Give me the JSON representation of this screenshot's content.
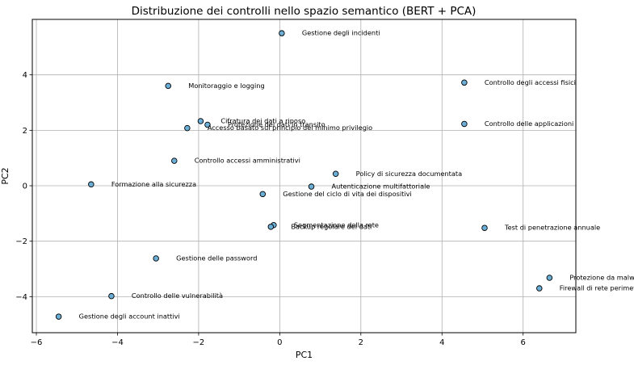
{
  "chart_data": {
    "type": "scatter",
    "title": "Distribuzione dei controlli nello spazio semantico (BERT + PCA)",
    "xlabel": "PC1",
    "ylabel": "PC2",
    "xlim": [
      -6.1,
      7.3
    ],
    "ylim": [
      -5.3,
      6.0
    ],
    "xticks": [
      -6,
      -4,
      -2,
      0,
      2,
      4,
      6
    ],
    "yticks": [
      -4,
      -2,
      0,
      2,
      4
    ],
    "grid": true,
    "marker_color": "#6baed6",
    "marker_edge_color": "#000000",
    "points": [
      {
        "label": "Gestione degli incidenti",
        "x": 0.05,
        "y": 5.5
      },
      {
        "label": "Monitoraggio e logging",
        "x": -2.75,
        "y": 3.6
      },
      {
        "label": "Controllo degli accessi fisici",
        "x": 4.55,
        "y": 3.72
      },
      {
        "label": "Cifratura dei dati a riposo",
        "x": -1.95,
        "y": 2.33
      },
      {
        "label": "Protezione dei dati in transito",
        "x": -1.78,
        "y": 2.2
      },
      {
        "label": "Accesso basato sul principio del minimo privilegio",
        "x": -2.28,
        "y": 2.08
      },
      {
        "label": "Controllo delle applicazioni",
        "x": 4.55,
        "y": 2.23
      },
      {
        "label": "Controllo accessi amministrativi",
        "x": -2.6,
        "y": 0.9
      },
      {
        "label": "Formazione alla sicurezza",
        "x": -4.65,
        "y": 0.05
      },
      {
        "label": "Policy di sicurezza documentata",
        "x": 1.38,
        "y": 0.43
      },
      {
        "label": "Autenticazione multifattoriale",
        "x": 0.78,
        "y": -0.03
      },
      {
        "label": "Gestione del ciclo di vita dei dispositivi",
        "x": -0.42,
        "y": -0.3
      },
      {
        "label": "Segmentazione della rete",
        "x": -0.15,
        "y": -1.42
      },
      {
        "label": "Backup regolare dei dati",
        "x": -0.22,
        "y": -1.48
      },
      {
        "label": "Test di penetrazione annuale",
        "x": 5.05,
        "y": -1.52
      },
      {
        "label": "Gestione delle password",
        "x": -3.05,
        "y": -2.62
      },
      {
        "label": "Protezione da malware",
        "x": 6.65,
        "y": -3.32
      },
      {
        "label": "Firewall di rete perimetrale",
        "x": 6.4,
        "y": -3.7
      },
      {
        "label": "Controllo delle vulnerabilità",
        "x": -4.15,
        "y": -3.98
      },
      {
        "label": "Gestione degli account inattivi",
        "x": -5.45,
        "y": -4.72
      }
    ]
  }
}
